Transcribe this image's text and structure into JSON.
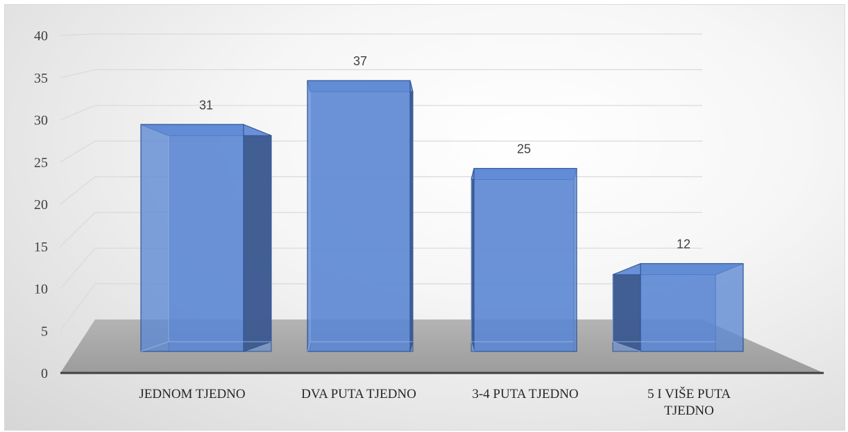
{
  "chart_data": {
    "type": "bar",
    "title": "",
    "xlabel": "",
    "ylabel": "",
    "ylim": [
      0,
      40
    ],
    "yticks": [
      0,
      5,
      10,
      15,
      20,
      25,
      30,
      35,
      40
    ],
    "grid": true,
    "style": "3d-bar",
    "categories": [
      "JEDNOM TJEDNO",
      "DVA PUTA TJEDNO",
      "3-4 PUTA TJEDNO",
      "5 I VIŠE PUTA TJEDNO"
    ],
    "category_lines": [
      [
        "JEDNOM TJEDNO"
      ],
      [
        "DVA PUTA TJEDNO"
      ],
      [
        "3-4 PUTA TJEDNO"
      ],
      [
        "5 I VIŠE PUTA",
        "TJEDNO"
      ]
    ],
    "values": [
      31,
      37,
      25,
      12
    ],
    "data_labels": [
      "31",
      "37",
      "25",
      "12"
    ],
    "colors": {
      "bar_front": "#5b86d2",
      "bar_top": "#6e97dd",
      "bar_side": "#3d5a8f",
      "bar_edge": "#2f5597",
      "floor": "#a6a6a6",
      "axis": "#404040",
      "grid": "#d9d9d9"
    }
  }
}
